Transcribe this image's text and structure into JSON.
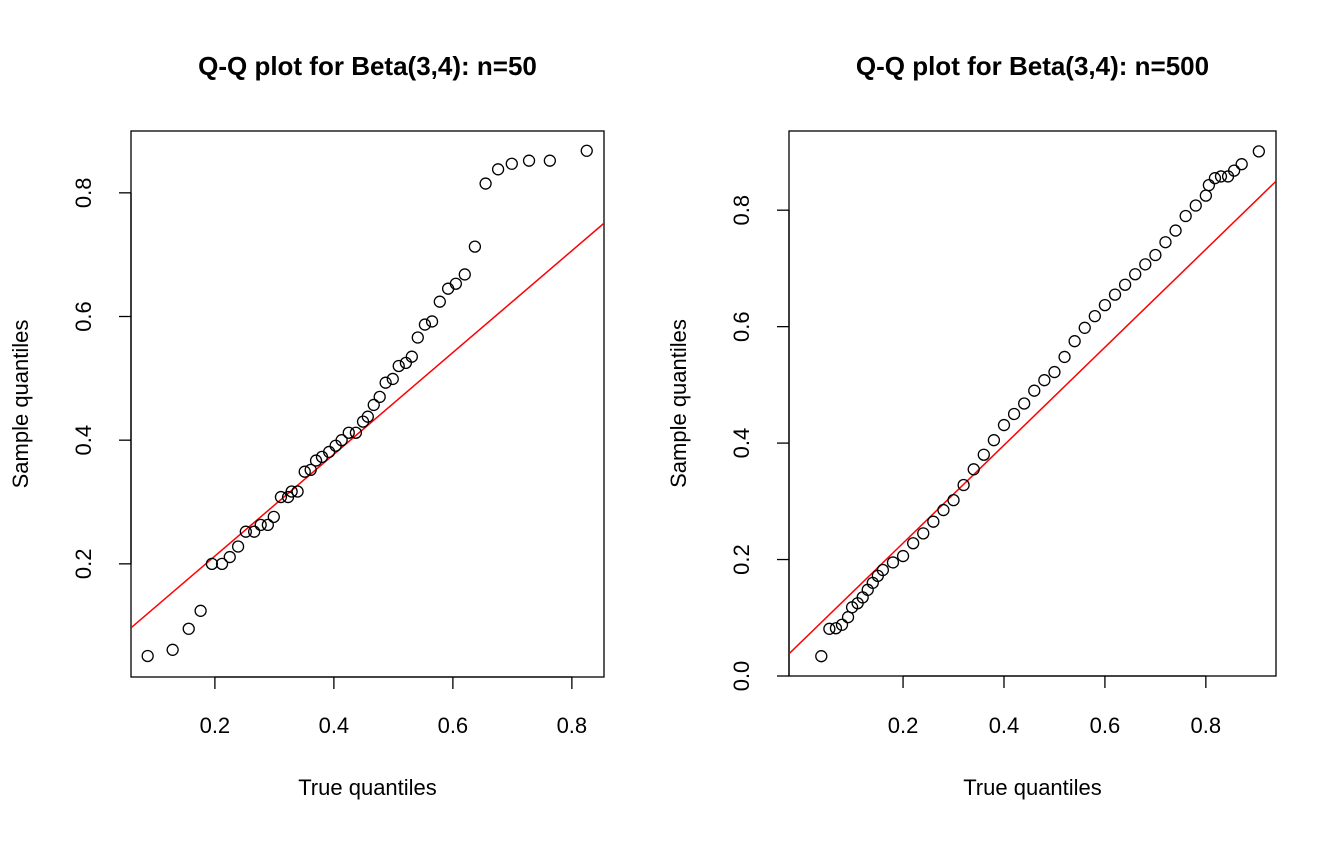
{
  "chart_data": [
    {
      "type": "scatter",
      "title": "Q-Q plot for Beta(3,4): n=50",
      "x_label": "True quantiles",
      "y_label": "Sample quantiles",
      "x": [
        0.087,
        0.129,
        0.156,
        0.176,
        0.195,
        0.212,
        0.225,
        0.239,
        0.252,
        0.266,
        0.277,
        0.289,
        0.299,
        0.311,
        0.323,
        0.329,
        0.339,
        0.351,
        0.361,
        0.37,
        0.38,
        0.392,
        0.403,
        0.413,
        0.425,
        0.437,
        0.449,
        0.457,
        0.467,
        0.477,
        0.487,
        0.499,
        0.509,
        0.521,
        0.531,
        0.541,
        0.553,
        0.565,
        0.578,
        0.592,
        0.605,
        0.62,
        0.637,
        0.655,
        0.676,
        0.699,
        0.728,
        0.763,
        0.825
      ],
      "values": [
        0.051,
        0.061,
        0.095,
        0.124,
        0.2,
        0.2,
        0.211,
        0.228,
        0.252,
        0.252,
        0.263,
        0.263,
        0.276,
        0.308,
        0.308,
        0.317,
        0.317,
        0.349,
        0.352,
        0.367,
        0.373,
        0.381,
        0.391,
        0.4,
        0.412,
        0.412,
        0.43,
        0.438,
        0.457,
        0.47,
        0.493,
        0.499,
        0.52,
        0.525,
        0.535,
        0.566,
        0.587,
        0.592,
        0.624,
        0.645,
        0.653,
        0.668,
        0.713,
        0.815,
        0.838,
        0.847,
        0.852,
        0.852,
        0.868
      ],
      "color": "#000000",
      "reference_line": {
        "intercept": 0.048,
        "slope": 0.823,
        "color": "#ff0000"
      },
      "xlim": [
        0.059,
        0.854
      ],
      "ylim": [
        0.017,
        0.9
      ],
      "xticks": [
        0.2,
        0.4,
        0.6,
        0.8
      ],
      "yticks": [
        0.2,
        0.4,
        0.6,
        0.8
      ]
    },
    {
      "type": "scatter",
      "title": "Q-Q plot for Beta(3,4): n=500",
      "x_label": "True quantiles",
      "y_label": "Sample quantiles",
      "x": [
        0.038,
        0.054,
        0.067,
        0.079,
        0.091,
        0.099,
        0.11,
        0.12,
        0.13,
        0.14,
        0.15,
        0.16,
        0.18,
        0.2,
        0.22,
        0.24,
        0.26,
        0.28,
        0.3,
        0.32,
        0.34,
        0.36,
        0.38,
        0.4,
        0.42,
        0.44,
        0.46,
        0.48,
        0.5,
        0.52,
        0.54,
        0.56,
        0.58,
        0.6,
        0.62,
        0.64,
        0.66,
        0.68,
        0.7,
        0.72,
        0.74,
        0.76,
        0.78,
        0.8,
        0.806,
        0.818,
        0.83,
        0.844,
        0.856,
        0.871,
        0.905
      ],
      "values": [
        0.034,
        0.081,
        0.082,
        0.088,
        0.101,
        0.118,
        0.125,
        0.135,
        0.148,
        0.16,
        0.172,
        0.182,
        0.195,
        0.206,
        0.228,
        0.245,
        0.265,
        0.285,
        0.302,
        0.328,
        0.355,
        0.38,
        0.405,
        0.431,
        0.45,
        0.468,
        0.49,
        0.508,
        0.522,
        0.548,
        0.575,
        0.598,
        0.618,
        0.637,
        0.655,
        0.672,
        0.69,
        0.707,
        0.723,
        0.745,
        0.765,
        0.79,
        0.808,
        0.825,
        0.843,
        0.855,
        0.858,
        0.858,
        0.868,
        0.879,
        0.901
      ],
      "color": "#000000",
      "reference_line": {
        "intercept": 0.06,
        "slope": 0.841,
        "color": "#ff0000"
      },
      "xlim": [
        -0.026,
        0.939
      ],
      "ylim": [
        0,
        0.936
      ],
      "xticks": [
        0.2,
        0.4,
        0.6,
        0.8
      ],
      "yticks": [
        {
          "value": 0,
          "label": "0.0"
        },
        0.2,
        0.4,
        0.6,
        0.8
      ]
    }
  ]
}
